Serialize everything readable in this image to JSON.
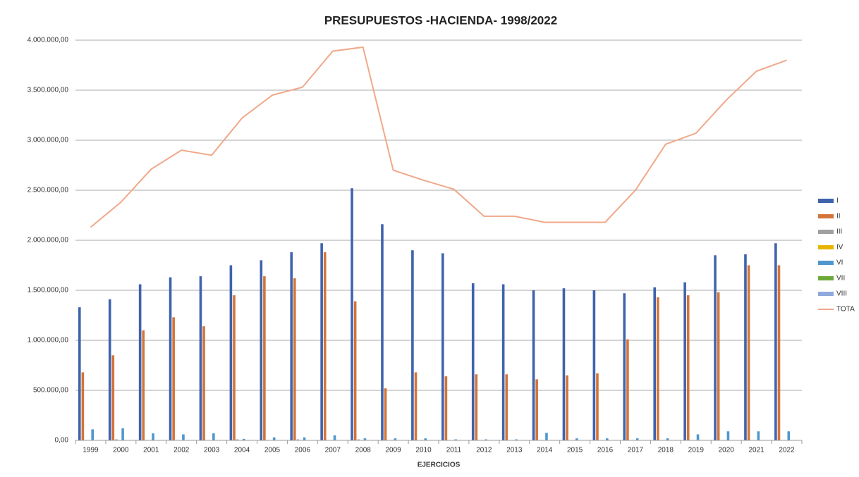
{
  "chart_data": {
    "type": "bar",
    "title": "PRESUPUESTOS -HACIENDA- 1998/2022",
    "x_label": "EJERCICIOS",
    "categories": [
      "1999",
      "2000",
      "2001",
      "2002",
      "2003",
      "2004",
      "2005",
      "2006",
      "2007",
      "2008",
      "2009",
      "2010",
      "2011",
      "2012",
      "2013",
      "2014",
      "2015",
      "2016",
      "2017",
      "2018",
      "2019",
      "2020",
      "2021",
      "2022"
    ],
    "series": [
      {
        "name": "I",
        "type": "bar",
        "color": "#3f63ad",
        "values": [
          1330000,
          1410000,
          1560000,
          1630000,
          1640000,
          1750000,
          1800000,
          1880000,
          1970000,
          2520000,
          2160000,
          1900000,
          1870000,
          1570000,
          1560000,
          1500000,
          1520000,
          1500000,
          1470000,
          1530000,
          1580000,
          1850000,
          1860000,
          1970000
        ]
      },
      {
        "name": "II",
        "type": "bar",
        "color": "#d3743a",
        "values": [
          680000,
          850000,
          1100000,
          1230000,
          1140000,
          1450000,
          1640000,
          1620000,
          1880000,
          1390000,
          520000,
          680000,
          640000,
          660000,
          660000,
          610000,
          650000,
          670000,
          1010000,
          1430000,
          1450000,
          1480000,
          1750000,
          1750000
        ]
      },
      {
        "name": "III",
        "type": "bar",
        "color": "#a0a0a0",
        "values": [
          0,
          10000,
          0,
          0,
          0,
          10000,
          0,
          10000,
          0,
          10000,
          0,
          0,
          0,
          0,
          0,
          0,
          0,
          0,
          0,
          0,
          0,
          0,
          0,
          0
        ]
      },
      {
        "name": "IV",
        "type": "bar",
        "color": "#e8b400",
        "values": [
          0,
          0,
          0,
          0,
          0,
          0,
          0,
          0,
          0,
          0,
          0,
          0,
          0,
          0,
          0,
          0,
          0,
          0,
          0,
          0,
          0,
          0,
          0,
          0
        ]
      },
      {
        "name": "VI",
        "type": "bar",
        "color": "#4f97cf",
        "values": [
          110000,
          120000,
          70000,
          60000,
          70000,
          15000,
          30000,
          30000,
          50000,
          20000,
          20000,
          20000,
          10000,
          10000,
          10000,
          75000,
          20000,
          20000,
          20000,
          20000,
          60000,
          90000,
          90000,
          90000
        ]
      },
      {
        "name": "VII",
        "type": "bar",
        "color": "#6aaa3a",
        "values": [
          0,
          0,
          0,
          0,
          0,
          0,
          0,
          0,
          0,
          0,
          0,
          0,
          0,
          0,
          0,
          0,
          0,
          0,
          0,
          0,
          0,
          0,
          0,
          0
        ]
      },
      {
        "name": "VIII",
        "type": "bar",
        "color": "#8fa9dc",
        "values": [
          0,
          0,
          0,
          0,
          0,
          0,
          0,
          0,
          0,
          0,
          0,
          0,
          0,
          0,
          0,
          0,
          0,
          0,
          0,
          0,
          0,
          0,
          0,
          0
        ]
      },
      {
        "name": "TOTA",
        "type": "line",
        "color": "#f0a88a",
        "values": [
          2130000,
          2380000,
          2710000,
          2900000,
          2850000,
          3220000,
          3450000,
          3530000,
          3890000,
          3930000,
          2700000,
          2600000,
          2510000,
          2240000,
          2240000,
          2180000,
          2180000,
          2180000,
          2500000,
          2960000,
          3070000,
          3400000,
          3690000,
          3800000
        ]
      }
    ],
    "ylim": [
      0,
      4000000
    ],
    "yticks": [
      {
        "value": 0,
        "label": "0,00"
      },
      {
        "value": 500000,
        "label": "500.000,00"
      },
      {
        "value": 1000000,
        "label": "1.000.000,00"
      },
      {
        "value": 1500000,
        "label": "1.500.000,00"
      },
      {
        "value": 2000000,
        "label": "2.000.000,00"
      },
      {
        "value": 2500000,
        "label": "2.500.000,00"
      },
      {
        "value": 3000000,
        "label": "3.000.000,00"
      },
      {
        "value": 3500000,
        "label": "3.500.000,00"
      },
      {
        "value": 4000000,
        "label": "4.000.000,00"
      }
    ],
    "grid": true,
    "legend": "right"
  }
}
